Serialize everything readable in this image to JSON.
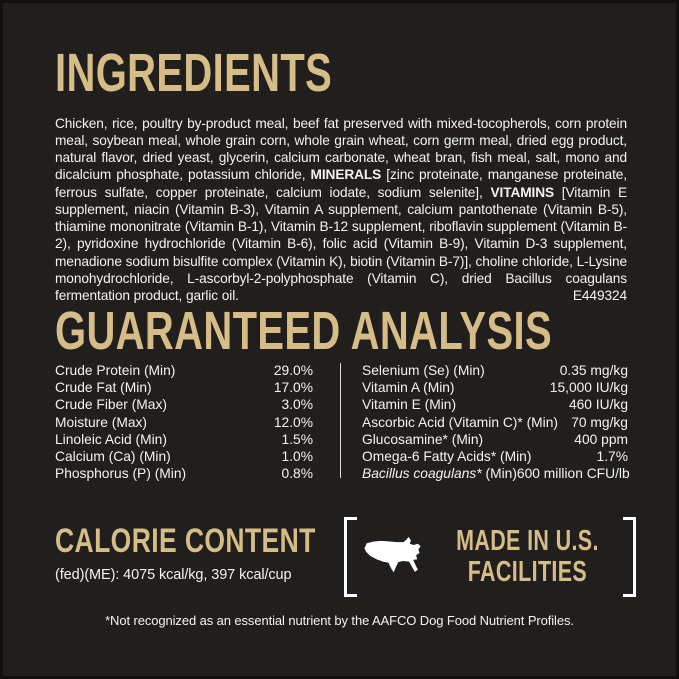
{
  "colors": {
    "background": "#201f1d",
    "heading_gold": "#d6bc87",
    "body_text": "#f5f3f0",
    "divider": "#dddcda",
    "map_fill": "#ffffff"
  },
  "ingredients": {
    "title": "INGREDIENTS",
    "runs": [
      {
        "t": "Chicken, rice, poultry by-product meal, beef fat preserved with mixed-tocopherols, corn protein meal, soybean meal, whole grain corn, whole grain wheat, corn germ meal, dried egg product, natural flavor, dried yeast, glycerin, calcium carbonate, wheat bran, fish meal, salt, mono and dicalcium phosphate, potassium chloride, "
      },
      {
        "t": "MINERALS",
        "b": true
      },
      {
        "t": " [zinc proteinate, manganese proteinate, ferrous sulfate, copper proteinate, calcium iodate, sodium selenite], "
      },
      {
        "t": "VITAMINS",
        "b": true
      },
      {
        "t": " [Vitamin E supplement, niacin (Vitamin B-3), Vitamin A supplement, calcium pantothenate (Vitamin B-5), thiamine mononitrate (Vitamin B-1), Vitamin B-12 supplement, riboflavin supplement (Vitamin B-2), pyridoxine hydrochloride (Vitamin B-6), folic acid (Vitamin B-9), Vitamin D-3 supplement, menadione sodium bisulfite complex (Vitamin K), biotin (Vitamin B-7)], choline chloride, L-Lysine monohydrochloride, L-ascorbyl-2-polyphosphate (Vitamin C), dried Bacillus coagulans fermentation product, garlic oil."
      }
    ],
    "code": "E449324"
  },
  "guaranteed_analysis": {
    "title": "GUARANTEED ANALYSIS",
    "left_rows": [
      {
        "runs": [
          {
            "t": "Crude Protein (Min)"
          }
        ],
        "value": "29.0%"
      },
      {
        "runs": [
          {
            "t": "Crude Fat (Min)"
          }
        ],
        "value": "17.0%"
      },
      {
        "runs": [
          {
            "t": "Crude Fiber (Max)"
          }
        ],
        "value": "3.0%"
      },
      {
        "runs": [
          {
            "t": "Moisture (Max)"
          }
        ],
        "value": "12.0%"
      },
      {
        "runs": [
          {
            "t": "Linoleic Acid (Min)"
          }
        ],
        "value": "1.5%"
      },
      {
        "runs": [
          {
            "t": "Calcium (Ca) (Min)"
          }
        ],
        "value": "1.0%"
      },
      {
        "runs": [
          {
            "t": "Phosphorus (P) (Min)"
          }
        ],
        "value": "0.8%"
      }
    ],
    "right_rows": [
      {
        "runs": [
          {
            "t": "Selenium (Se) (Min)"
          }
        ],
        "value": "0.35 mg/kg"
      },
      {
        "runs": [
          {
            "t": "Vitamin A (Min)"
          }
        ],
        "value": "15,000 IU/kg"
      },
      {
        "runs": [
          {
            "t": "Vitamin E (Min)"
          }
        ],
        "value": "460 IU/kg"
      },
      {
        "runs": [
          {
            "t": "Ascorbic Acid (Vitamin C)* (Min)"
          }
        ],
        "value": "70 mg/kg"
      },
      {
        "runs": [
          {
            "t": "Glucosamine* (Min)"
          }
        ],
        "value": "400 ppm"
      },
      {
        "runs": [
          {
            "t": "Omega-6 Fatty Acids* (Min)"
          }
        ],
        "value": "1.7%"
      },
      {
        "runs": [
          {
            "t": "Bacillus coagulans*",
            "i": true
          },
          {
            "t": " (Min)"
          }
        ],
        "value": "600 million CFU/lb"
      }
    ]
  },
  "calorie_content": {
    "title": "CALORIE CONTENT",
    "value_line": "(fed)(ME): 4075 kcal/kg, 397 kcal/cup"
  },
  "made_in": {
    "line1": "MADE IN U.S.",
    "line2": "FACILITIES",
    "icon": "us-map-icon"
  },
  "footnote": "*Not recognized as an essential nutrient by the AAFCO Dog Food Nutrient Profiles."
}
